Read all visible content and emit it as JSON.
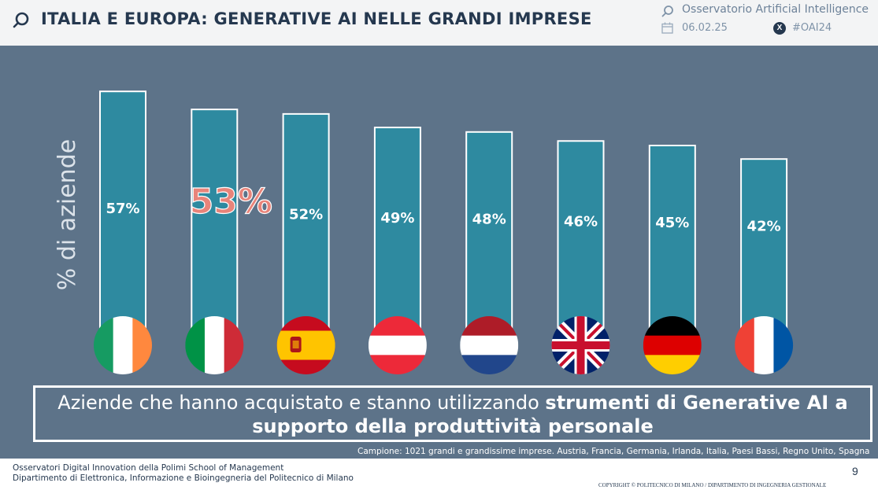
{
  "header": {
    "title": "ITALIA E EUROPA: GENERATIVE AI NELLE GRANDI IMPRESE",
    "observatory": "Osservatorio Artificial Intelligence",
    "date": "06.02.25",
    "hashtag": "#OAI24"
  },
  "chart_data": {
    "type": "bar",
    "ylabel": "% di aziende",
    "categories": [
      "Irlanda",
      "Italia",
      "Spagna",
      "Austria",
      "Paesi Bassi",
      "Regno Unito",
      "Germania",
      "Francia"
    ],
    "values": [
      57,
      53,
      52,
      49,
      48,
      46,
      45,
      42
    ],
    "value_labels": [
      "57%",
      "53%",
      "52%",
      "49%",
      "48%",
      "46%",
      "45%",
      "42%"
    ],
    "highlight_index": 1,
    "ylim": [
      0,
      60
    ],
    "colors": {
      "bar": "#2e8aa0",
      "bar_border": "#ffffff",
      "highlight_text": "#e8847a",
      "background": "#5d7389"
    }
  },
  "caption": {
    "normal": "Aziende che hanno acquistato e stanno utilizzando ",
    "bold": "strumenti di Generative AI a supporto della produttività personale"
  },
  "sample_note": "Campione: 1021 grandi e grandissime imprese. Austria, Francia, Germania, Irlanda, Italia, Paesi Bassi, Regno Unito, Spagna",
  "footer": {
    "line1": "Osservatori Digital Innovation della Polimi School of Management",
    "line2": "Dipartimento di Elettronica, Informazione e Bioingegneria del Politecnico di Milano",
    "page": "9",
    "copyright": "COPYRIGHT © POLITECNICO DI MILANO / DIPARTIMENTO DI INGEGNERIA GESTIONALE"
  }
}
